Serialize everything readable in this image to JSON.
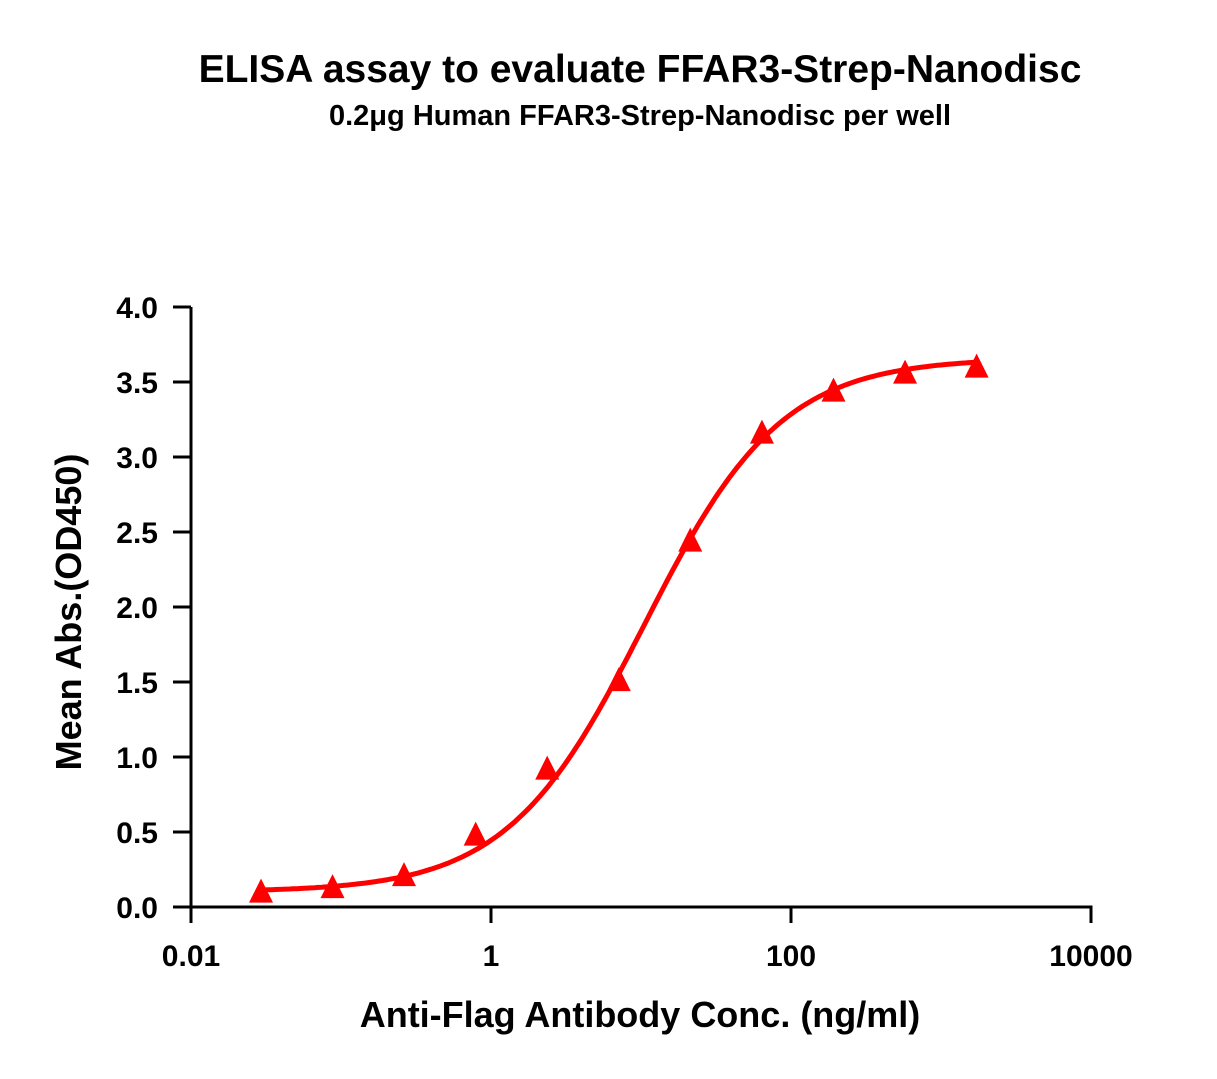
{
  "chart_data": {
    "type": "scatter",
    "title": "ELISA assay to evaluate FFAR3-Strep-Nanodisc",
    "subtitle": "0.2μg Human FFAR3-Strep-Nanodisc per well",
    "xlabel": "Anti-Flag Antibody Conc. (ng/ml)",
    "ylabel": "Mean Abs.(OD450)",
    "xscale": "log",
    "xlim": [
      0.01,
      10000
    ],
    "ylim": [
      0,
      4.0
    ],
    "x_ticks": [
      {
        "value": 0.01,
        "label": "0.01"
      },
      {
        "value": 1,
        "label": "1"
      },
      {
        "value": 100,
        "label": "100"
      },
      {
        "value": 10000,
        "label": "10000"
      }
    ],
    "y_ticks": [
      {
        "value": 0.0,
        "label": "0.0"
      },
      {
        "value": 0.5,
        "label": "0.5"
      },
      {
        "value": 1.0,
        "label": "1.0"
      },
      {
        "value": 1.5,
        "label": "1.5"
      },
      {
        "value": 2.0,
        "label": "2.0"
      },
      {
        "value": 2.5,
        "label": "2.5"
      },
      {
        "value": 3.0,
        "label": "3.0"
      },
      {
        "value": 3.5,
        "label": "3.5"
      },
      {
        "value": 4.0,
        "label": "4.0"
      }
    ],
    "grid": false,
    "legend": null,
    "series": [
      {
        "name": "FFAR3-Strep-Nanodisc",
        "color": "#ff0000",
        "marker": "triangle",
        "fit": "4PL sigmoid",
        "x": [
          0.0293,
          0.0878,
          0.263,
          0.79,
          2.37,
          7.11,
          21.3,
          64.0,
          192,
          576,
          1728
        ],
        "y": [
          0.09,
          0.12,
          0.2,
          0.47,
          0.91,
          1.5,
          2.43,
          3.15,
          3.43,
          3.55,
          3.59
        ]
      }
    ],
    "fit_params": {
      "bottom": 0.1,
      "top": 3.66,
      "ec50": 10.5,
      "hill": 0.95
    }
  }
}
